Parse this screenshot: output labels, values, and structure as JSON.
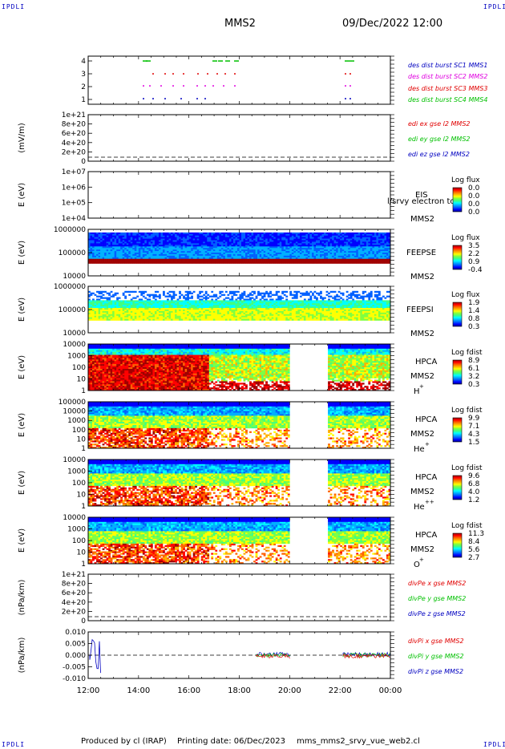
{
  "corner_label": "IPDLI",
  "header": {
    "spacecraft": "MMS2",
    "datetime": "09/Dec/2022 12:00"
  },
  "footer": {
    "produced_by": "Produced by cl (IRAP)",
    "printing_date": "Printing date: 06/Dec/2023",
    "filename": "mms_mms2_srvy_vue_web2.cl"
  },
  "colors": {
    "red": "#e00000",
    "green": "#00c000",
    "magenta": "#e000e0",
    "blue": "#0000c0",
    "darkgreen": "#00a000"
  },
  "chart_data": {
    "type": "heatmap",
    "x_ticks": [
      "12:00",
      "14:00",
      "16:00",
      "18:00",
      "20:00",
      "22:00",
      "00:00"
    ],
    "x_range": [
      "12:00",
      "00:00"
    ],
    "panels": [
      {
        "id": "burst",
        "type": "scatter",
        "yticks": [
          "4",
          "3",
          "2",
          "1"
        ],
        "legend": [
          {
            "text": "des dist burst SC1 MMS1",
            "color": "#0000c0"
          },
          {
            "text": "des dist burst SC2 MMS2",
            "color": "#e000e0"
          },
          {
            "text": "des dist burst SC3 MMS3",
            "color": "#e00000"
          },
          {
            "text": "des dist burst SC4 MMS4",
            "color": "#00c000"
          }
        ]
      },
      {
        "id": "edi",
        "type": "line",
        "ylabel": "(mV/m)",
        "yticks": [
          "1e+21",
          "8e+20",
          "6e+20",
          "4e+20",
          "2e+20",
          "0"
        ],
        "legend": [
          {
            "text": "edi ex gse l2 MMS2",
            "color": "#e00000"
          },
          {
            "text": "edi ey gse l2 MMS2",
            "color": "#00c000"
          },
          {
            "text": "edi ez gse l2 MMS2",
            "color": "#0000c0"
          }
        ]
      },
      {
        "id": "eis",
        "type": "heatmap",
        "ylabel": "E (eV)",
        "yticks": [
          "1e+07",
          "1e+06",
          "1e+05",
          "1e+04"
        ],
        "instrument": "EIS",
        "overlay": "l/srvy electron to",
        "sc": "MMS2",
        "colorbar_title": "Log flux",
        "colorbar_ticks": [
          "0.0",
          "0.0",
          "0.0",
          "0.0"
        ]
      },
      {
        "id": "feepse",
        "type": "heatmap",
        "ylabel": "E (eV)",
        "yticks": [
          "1000000",
          "100000",
          "10000"
        ],
        "instrument": "FEEPSE",
        "sc": "MMS2",
        "colorbar_title": "Log flux",
        "colorbar_ticks": [
          "3.5",
          "2.2",
          "0.9",
          "-0.4"
        ]
      },
      {
        "id": "feepsi",
        "type": "heatmap",
        "ylabel": "E (eV)",
        "yticks": [
          "1000000",
          "100000",
          "10000"
        ],
        "instrument": "FEEPSI",
        "sc": "MMS2",
        "colorbar_title": "Log flux",
        "colorbar_ticks": [
          "1.9",
          "1.4",
          "0.8",
          "0.3"
        ]
      },
      {
        "id": "hpca_h",
        "type": "heatmap",
        "ylabel": "E (eV)",
        "yticks": [
          "10000",
          "1000",
          "100",
          "10",
          "1"
        ],
        "instrument": "HPCA",
        "sc": "MMS2",
        "species": "H",
        "charge": "+",
        "colorbar_title": "Log fdist",
        "colorbar_ticks": [
          "8.9",
          "6.1",
          "3.2",
          "0.3"
        ]
      },
      {
        "id": "hpca_he",
        "type": "heatmap",
        "ylabel": "E (eV)",
        "yticks": [
          "100000",
          "10000",
          "1000",
          "100",
          "10",
          "1"
        ],
        "instrument": "HPCA",
        "sc": "MMS2",
        "species": "He",
        "charge": "+",
        "colorbar_title": "Log fdist",
        "colorbar_ticks": [
          "9.9",
          "7.1",
          "4.3",
          "1.5"
        ]
      },
      {
        "id": "hpca_he2",
        "type": "heatmap",
        "ylabel": "E (eV)",
        "yticks": [
          "10000",
          "1000",
          "100",
          "10",
          "1"
        ],
        "instrument": "HPCA",
        "sc": "MMS2",
        "species": "He",
        "charge": "++",
        "colorbar_title": "Log fdist",
        "colorbar_ticks": [
          "9.6",
          "6.8",
          "4.0",
          "1.2"
        ]
      },
      {
        "id": "hpca_o",
        "type": "heatmap",
        "ylabel": "E (eV)",
        "yticks": [
          "10000",
          "1000",
          "100",
          "10",
          "1"
        ],
        "instrument": "HPCA",
        "sc": "MMS2",
        "species": "O",
        "charge": "+",
        "colorbar_title": "Log fdist",
        "colorbar_ticks": [
          "11.3",
          "8.4",
          "5.6",
          "2.7"
        ]
      },
      {
        "id": "divpe",
        "type": "line",
        "ylabel": "(nPa/km)",
        "yticks": [
          "1e+21",
          "8e+20",
          "6e+20",
          "4e+20",
          "2e+20",
          "0"
        ],
        "legend": [
          {
            "text": "divPe x gse MMS2",
            "color": "#e00000"
          },
          {
            "text": "divPe y gse MMS2",
            "color": "#00c000"
          },
          {
            "text": "divPe z gse MMS2",
            "color": "#0000c0"
          }
        ]
      },
      {
        "id": "divpi",
        "type": "line",
        "ylabel": "(nPa/km)",
        "yticks": [
          "0.010",
          "0.005",
          "0.000",
          "-0.005",
          "-0.010"
        ],
        "legend": [
          {
            "text": "divPi x gse MMS2",
            "color": "#e00000"
          },
          {
            "text": "divPi y gse MMS2",
            "color": "#00c000"
          },
          {
            "text": "divPi z gse MMS2",
            "color": "#0000c0"
          }
        ]
      }
    ]
  }
}
